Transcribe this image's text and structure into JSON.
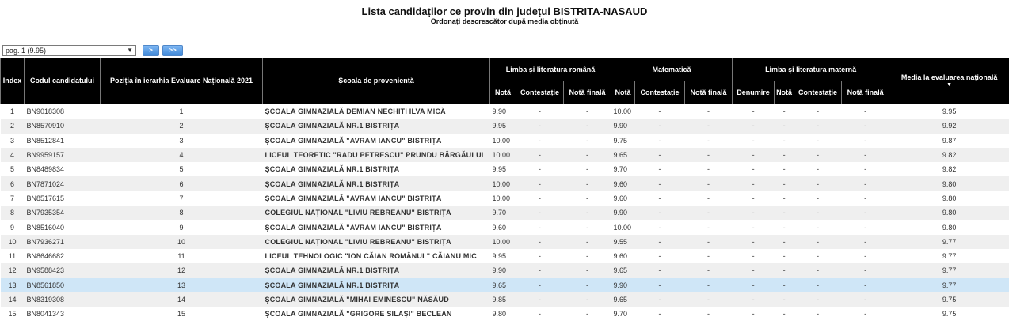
{
  "header": {
    "title": "Lista candidaților ce provin din județul BISTRITA-NASAUD",
    "subtitle": "Ordonați descrescător după media obținută"
  },
  "pager": {
    "selected_page": "pag. 1 (9.95)",
    "next_label": ">",
    "last_label": ">>"
  },
  "table": {
    "headers": {
      "index": "Index",
      "code": "Codul candidatului",
      "position": "Poziția în ierarhia Evaluare Națională 2021",
      "school": "Școala de proveniență",
      "romana_group": "Limba și literatura română",
      "mate_group": "Matematică",
      "materna_group": "Limba și literatura maternă",
      "media": "Media la evaluarea națională",
      "sort_icon": "▼",
      "nota": "Notă",
      "contestatie": "Contestație",
      "nota_finala": "Notă finală",
      "denumire": "Denumire"
    },
    "rows": [
      {
        "idx": "1",
        "code": "BN9018308",
        "pos": "1",
        "school": "ȘCOALA GIMNAZIALĂ DEMIAN NECHITI ILVA MICĂ",
        "ro": "9.90",
        "ro_c": "-",
        "ro_f": "-",
        "ma": "10.00",
        "ma_c": "-",
        "ma_f": "-",
        "mt_d": "-",
        "mt": "-",
        "mt_c": "-",
        "mt_f": "-",
        "media": "9.95"
      },
      {
        "idx": "2",
        "code": "BN8570910",
        "pos": "2",
        "school": "ȘCOALA GIMNAZIALĂ NR.1 BISTRIȚA",
        "ro": "9.95",
        "ro_c": "-",
        "ro_f": "-",
        "ma": "9.90",
        "ma_c": "-",
        "ma_f": "-",
        "mt_d": "-",
        "mt": "-",
        "mt_c": "-",
        "mt_f": "-",
        "media": "9.92"
      },
      {
        "idx": "3",
        "code": "BN8512841",
        "pos": "3",
        "school": "ȘCOALA GIMNAZIALĂ \"AVRAM IANCU\" BISTRIȚA",
        "ro": "10.00",
        "ro_c": "-",
        "ro_f": "-",
        "ma": "9.75",
        "ma_c": "-",
        "ma_f": "-",
        "mt_d": "-",
        "mt": "-",
        "mt_c": "-",
        "mt_f": "-",
        "media": "9.87"
      },
      {
        "idx": "4",
        "code": "BN9959157",
        "pos": "4",
        "school": "LICEUL TEORETIC \"RADU PETRESCU\" PRUNDU BÂRGĂULUI",
        "ro": "10.00",
        "ro_c": "-",
        "ro_f": "-",
        "ma": "9.65",
        "ma_c": "-",
        "ma_f": "-",
        "mt_d": "-",
        "mt": "-",
        "mt_c": "-",
        "mt_f": "-",
        "media": "9.82"
      },
      {
        "idx": "5",
        "code": "BN8489834",
        "pos": "5",
        "school": "ȘCOALA GIMNAZIALĂ NR.1 BISTRIȚA",
        "ro": "9.95",
        "ro_c": "-",
        "ro_f": "-",
        "ma": "9.70",
        "ma_c": "-",
        "ma_f": "-",
        "mt_d": "-",
        "mt": "-",
        "mt_c": "-",
        "mt_f": "-",
        "media": "9.82"
      },
      {
        "idx": "6",
        "code": "BN7871024",
        "pos": "6",
        "school": "ȘCOALA GIMNAZIALĂ NR.1 BISTRIȚA",
        "ro": "10.00",
        "ro_c": "-",
        "ro_f": "-",
        "ma": "9.60",
        "ma_c": "-",
        "ma_f": "-",
        "mt_d": "-",
        "mt": "-",
        "mt_c": "-",
        "mt_f": "-",
        "media": "9.80"
      },
      {
        "idx": "7",
        "code": "BN8517615",
        "pos": "7",
        "school": "ȘCOALA GIMNAZIALĂ \"AVRAM IANCU\" BISTRIȚA",
        "ro": "10.00",
        "ro_c": "-",
        "ro_f": "-",
        "ma": "9.60",
        "ma_c": "-",
        "ma_f": "-",
        "mt_d": "-",
        "mt": "-",
        "mt_c": "-",
        "mt_f": "-",
        "media": "9.80"
      },
      {
        "idx": "8",
        "code": "BN7935354",
        "pos": "8",
        "school": "COLEGIUL NAȚIONAL \"LIVIU REBREANU\" BISTRIȚA",
        "ro": "9.70",
        "ro_c": "-",
        "ro_f": "-",
        "ma": "9.90",
        "ma_c": "-",
        "ma_f": "-",
        "mt_d": "-",
        "mt": "-",
        "mt_c": "-",
        "mt_f": "-",
        "media": "9.80"
      },
      {
        "idx": "9",
        "code": "BN8516040",
        "pos": "9",
        "school": "ȘCOALA GIMNAZIALĂ \"AVRAM IANCU\" BISTRIȚA",
        "ro": "9.60",
        "ro_c": "-",
        "ro_f": "-",
        "ma": "10.00",
        "ma_c": "-",
        "ma_f": "-",
        "mt_d": "-",
        "mt": "-",
        "mt_c": "-",
        "mt_f": "-",
        "media": "9.80"
      },
      {
        "idx": "10",
        "code": "BN7936271",
        "pos": "10",
        "school": "COLEGIUL NAȚIONAL \"LIVIU REBREANU\" BISTRIȚA",
        "ro": "10.00",
        "ro_c": "-",
        "ro_f": "-",
        "ma": "9.55",
        "ma_c": "-",
        "ma_f": "-",
        "mt_d": "-",
        "mt": "-",
        "mt_c": "-",
        "mt_f": "-",
        "media": "9.77"
      },
      {
        "idx": "11",
        "code": "BN8646682",
        "pos": "11",
        "school": "LICEUL TEHNOLOGIC \"ION CĂIAN ROMÂNUL\" CĂIANU MIC",
        "ro": "9.95",
        "ro_c": "-",
        "ro_f": "-",
        "ma": "9.60",
        "ma_c": "-",
        "ma_f": "-",
        "mt_d": "-",
        "mt": "-",
        "mt_c": "-",
        "mt_f": "-",
        "media": "9.77"
      },
      {
        "idx": "12",
        "code": "BN9588423",
        "pos": "12",
        "school": "ȘCOALA GIMNAZIALĂ NR.1 BISTRIȚA",
        "ro": "9.90",
        "ro_c": "-",
        "ro_f": "-",
        "ma": "9.65",
        "ma_c": "-",
        "ma_f": "-",
        "mt_d": "-",
        "mt": "-",
        "mt_c": "-",
        "mt_f": "-",
        "media": "9.77"
      },
      {
        "idx": "13",
        "code": "BN8561850",
        "pos": "13",
        "school": "ȘCOALA GIMNAZIALĂ NR.1 BISTRIȚA",
        "ro": "9.65",
        "ro_c": "-",
        "ro_f": "-",
        "ma": "9.90",
        "ma_c": "-",
        "ma_f": "-",
        "mt_d": "-",
        "mt": "-",
        "mt_c": "-",
        "mt_f": "-",
        "media": "9.77",
        "selected": true
      },
      {
        "idx": "14",
        "code": "BN8319308",
        "pos": "14",
        "school": "ȘCOALA GIMNAZIALĂ \"MIHAI EMINESCU\" NĂSĂUD",
        "ro": "9.85",
        "ro_c": "-",
        "ro_f": "-",
        "ma": "9.65",
        "ma_c": "-",
        "ma_f": "-",
        "mt_d": "-",
        "mt": "-",
        "mt_c": "-",
        "mt_f": "-",
        "media": "9.75"
      },
      {
        "idx": "15",
        "code": "BN8041343",
        "pos": "15",
        "school": "ȘCOALA GIMNAZIALĂ \"GRIGORE SILAȘI\" BECLEAN",
        "ro": "9.80",
        "ro_c": "-",
        "ro_f": "-",
        "ma": "9.70",
        "ma_c": "-",
        "ma_f": "-",
        "mt_d": "-",
        "mt": "-",
        "mt_c": "-",
        "mt_f": "-",
        "media": "9.75"
      }
    ]
  }
}
